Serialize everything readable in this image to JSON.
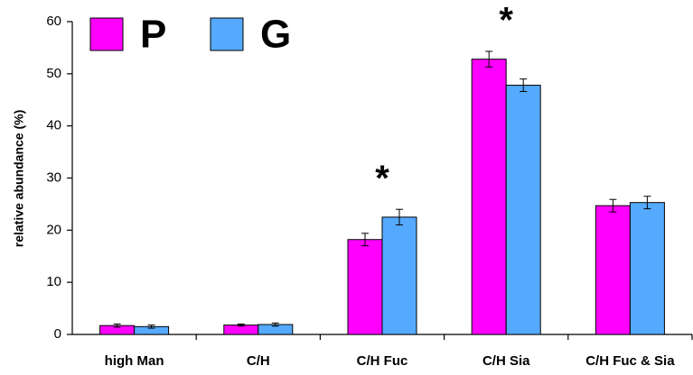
{
  "chart_data": {
    "type": "bar",
    "y_label": "relative abundance (%)",
    "categories": [
      "high Man",
      "C/H",
      "C/H Fuc",
      "C/H Sia",
      "C/H Fuc & Sia"
    ],
    "series": [
      {
        "name": "P",
        "color": "#ff00ff",
        "values": [
          1.7,
          1.8,
          18.2,
          52.8,
          24.7
        ],
        "errors": [
          0.3,
          0.2,
          1.2,
          1.5,
          1.2
        ]
      },
      {
        "name": "G",
        "color": "#55aaff",
        "values": [
          1.5,
          1.9,
          22.5,
          47.8,
          25.3
        ],
        "errors": [
          0.3,
          0.3,
          1.5,
          1.2,
          1.2
        ]
      }
    ],
    "annotations": [
      {
        "text": "*",
        "category": "C/H Fuc"
      },
      {
        "text": "*",
        "category": "C/H Sia"
      }
    ],
    "ylim": [
      0,
      60
    ],
    "yticks": [
      0,
      10,
      20,
      30,
      40,
      50,
      60
    ],
    "grid": false,
    "legend": "top-left"
  }
}
